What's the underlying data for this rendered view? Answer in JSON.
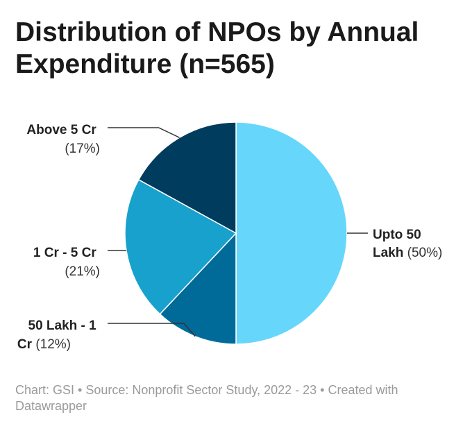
{
  "chart_data": {
    "type": "pie",
    "title": "Distribution of NPOs by Annual Expenditure (n=565)",
    "categories": [
      "Upto 50 Lakh",
      "50 Lakh - 1 Cr",
      "1 Cr - 5 Cr",
      "Above 5 Cr"
    ],
    "values": [
      50,
      12,
      21,
      17
    ],
    "value_labels": [
      "(50%)",
      "(12%)",
      "(21%)",
      "(17%)"
    ],
    "colors": [
      "#66d6fb",
      "#006b99",
      "#18a1cd",
      "#003c5e"
    ],
    "unit": "%"
  },
  "footer": {
    "text": "Chart: GSI • Source: Nonprofit Sector Study, 2022 - 23 • Created with Datawrapper"
  }
}
